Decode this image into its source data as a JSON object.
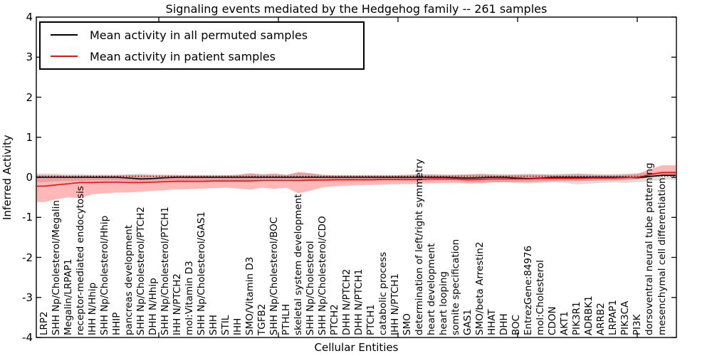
{
  "chart_data": {
    "type": "line",
    "title": "Signaling events mediated by the Hedgehog family -- 261 samples",
    "xlabel": "Cellular Entities",
    "ylabel": "Inferred Activity",
    "ylim": [
      -4,
      4
    ],
    "yticks": [
      -4,
      -3,
      -2,
      -1,
      0,
      1,
      2,
      3,
      4
    ],
    "grid": false,
    "legend_position": "upper left",
    "zero_line_style": "dotted",
    "categories": [
      "LRP2",
      "SHH Np/Cholesterol/Megalin",
      "Megalin/LRPAP1",
      "receptor-mediated endocytosis",
      "IHH N/Hhip",
      "SHH Np/Cholesterol/Hhip",
      "HHIP",
      "pancreas development",
      "SHH Np/Cholesterol/PTCH2",
      "DHH N/Hhip",
      "SHH Np/Cholesterol/PTCH1",
      "IHH N/PTCH2",
      "mol:Vitamin D3",
      "SHH Np/Cholesterol/GAS1",
      "SHH",
      "STIL",
      "IHH",
      "SMO/Vitamin D3",
      "TGFB2",
      "SHH Np/Cholesterol/BOC",
      "PTHLH",
      "skeletal system development",
      "SHH Np/Cholesterol",
      "SHH Np/Cholesterol/CDO",
      "PTCH2",
      "DHH N/PTCH2",
      "DHH N/PTCH1",
      "PTCH1",
      "catabolic process",
      "IHH N/PTCH1",
      "SMO",
      "determination of left/right symmetry",
      "heart development",
      "heart looping",
      "somite specification",
      "GAS1",
      "SMO/beta Arrestin2",
      "HHAT",
      "DHH",
      "BOC",
      "EntrezGene:84976",
      "mol:Cholesterol",
      "CDON",
      "AKT1",
      "PIK3R1",
      "ADRBK1",
      "ARRB2",
      "LRPAP1",
      "PIK3CA",
      "PI3K",
      "dorsoventral neural tube patterning",
      "mesenchymal cell differentiation"
    ],
    "series": [
      {
        "name": "Mean activity in all permuted samples",
        "color": "#000000",
        "band_color": "#000000",
        "band_opacity": 0.13,
        "values": [
          0,
          0,
          0,
          0,
          0,
          0,
          0,
          -0.02,
          -0.04,
          -0.03,
          -0.01,
          0,
          0,
          0,
          0,
          0,
          0,
          0,
          0,
          0,
          0,
          0,
          0,
          0,
          0,
          0,
          0,
          0,
          0,
          0,
          0,
          0,
          0,
          0,
          -0.01,
          -0.02,
          -0.01,
          0,
          0,
          -0.02,
          -0.03,
          -0.02,
          0,
          0,
          0,
          0,
          0,
          0,
          0,
          -0.01,
          0.02,
          0.05
        ],
        "band_upper": [
          0.1,
          0.09,
          0.08,
          0.08,
          0.07,
          0.07,
          0.07,
          0.08,
          0.09,
          0.08,
          0.07,
          0.07,
          0.06,
          0.06,
          0.06,
          0.06,
          0.07,
          0.1,
          0.08,
          0.09,
          0.07,
          0.12,
          0.1,
          0.07,
          0.06,
          0.06,
          0.06,
          0.06,
          0.06,
          0.06,
          0.07,
          0.08,
          0.08,
          0.07,
          0.07,
          0.08,
          0.09,
          0.08,
          0.08,
          0.08,
          0.09,
          0.08,
          0.08,
          0.09,
          0.1,
          0.09,
          0.08,
          0.08,
          0.09,
          0.1,
          0.12,
          0.15
        ],
        "band_lower": [
          -0.12,
          -0.1,
          -0.09,
          -0.09,
          -0.08,
          -0.08,
          -0.08,
          -0.09,
          -0.1,
          -0.09,
          -0.08,
          -0.08,
          -0.07,
          -0.07,
          -0.07,
          -0.07,
          -0.08,
          -0.1,
          -0.08,
          -0.09,
          -0.08,
          -0.12,
          -0.1,
          -0.08,
          -0.07,
          -0.07,
          -0.07,
          -0.07,
          -0.08,
          -0.08,
          -0.09,
          -0.1,
          -0.1,
          -0.09,
          -0.1,
          -0.12,
          -0.13,
          -0.12,
          -0.13,
          -0.15,
          -0.16,
          -0.14,
          -0.13,
          -0.14,
          -0.18,
          -0.16,
          -0.14,
          -0.13,
          -0.14,
          -0.12,
          -0.1,
          -0.06
        ]
      },
      {
        "name": "Mean activity in patient samples",
        "color": "#ee1111",
        "band_color": "#ff0000",
        "band_opacity": 0.28,
        "values": [
          -0.22,
          -0.19,
          -0.16,
          -0.13,
          -0.13,
          -0.12,
          -0.12,
          -0.13,
          -0.13,
          -0.12,
          -0.11,
          -0.1,
          -0.1,
          -0.1,
          -0.09,
          -0.09,
          -0.09,
          -0.09,
          -0.08,
          -0.08,
          -0.08,
          -0.08,
          -0.07,
          -0.07,
          -0.06,
          -0.06,
          -0.06,
          -0.06,
          -0.05,
          -0.05,
          -0.05,
          -0.05,
          -0.04,
          -0.04,
          -0.04,
          -0.06,
          -0.05,
          -0.04,
          -0.04,
          -0.04,
          -0.04,
          -0.03,
          -0.03,
          -0.03,
          -0.03,
          -0.02,
          -0.02,
          -0.02,
          -0.01,
          0.0,
          0.07,
          0.12
        ],
        "band_upper": [
          0.06,
          0.06,
          0.05,
          0.05,
          0.05,
          0.05,
          0.05,
          0.06,
          0.06,
          0.05,
          0.05,
          0.05,
          0.05,
          0.05,
          0.05,
          0.05,
          0.06,
          0.1,
          0.07,
          0.09,
          0.06,
          0.13,
          0.1,
          0.06,
          0.05,
          0.05,
          0.05,
          0.05,
          0.05,
          0.05,
          0.06,
          0.07,
          0.07,
          0.06,
          0.06,
          0.07,
          0.08,
          0.07,
          0.06,
          0.06,
          0.07,
          0.07,
          0.06,
          0.07,
          0.08,
          0.07,
          0.06,
          0.06,
          0.07,
          0.09,
          0.2,
          0.3
        ],
        "band_lower": [
          -0.62,
          -0.55,
          -0.5,
          -0.52,
          -0.42,
          -0.4,
          -0.38,
          -0.38,
          -0.36,
          -0.34,
          -0.32,
          -0.3,
          -0.3,
          -0.28,
          -0.27,
          -0.26,
          -0.28,
          -0.31,
          -0.26,
          -0.29,
          -0.26,
          -0.4,
          -0.33,
          -0.25,
          -0.22,
          -0.21,
          -0.2,
          -0.19,
          -0.18,
          -0.17,
          -0.17,
          -0.16,
          -0.15,
          -0.14,
          -0.14,
          -0.16,
          -0.15,
          -0.13,
          -0.12,
          -0.12,
          -0.12,
          -0.11,
          -0.1,
          -0.1,
          -0.1,
          -0.09,
          -0.08,
          -0.08,
          -0.07,
          -0.05,
          0.0,
          0.05
        ]
      }
    ]
  }
}
